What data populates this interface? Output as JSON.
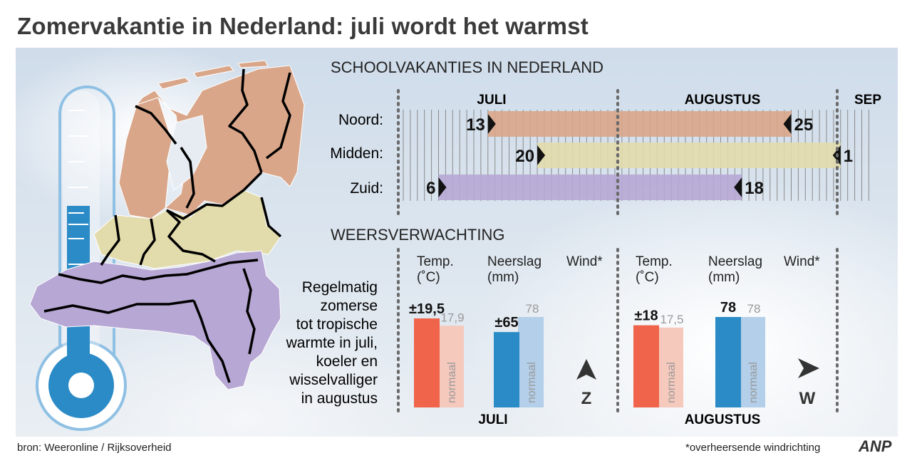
{
  "title": "Zomervakantie in Nederland: juli wordt het warmst",
  "footer": {
    "source": "bron:  Weeronline / Rijksoverheid",
    "note": "*overheersende windrichting",
    "logo": "ANP"
  },
  "schedule": {
    "heading": "SCHOOLVAKANTIES IN NEDERLAND",
    "months": [
      "JULI",
      "AUGUSTUS",
      "SEP"
    ],
    "regions": [
      {
        "label": "Noord:",
        "start": "13",
        "end": "25",
        "start_month": "juli",
        "end_month": "augustus",
        "color": "#d9a68a"
      },
      {
        "label": "Midden:",
        "start": "20",
        "end": "1",
        "start_month": "juli",
        "end_month": "september",
        "color": "#e2dbab"
      },
      {
        "label": "Zuid:",
        "start": "6",
        "end": "18",
        "start_month": "juli",
        "end_month": "augustus",
        "color": "#b7a7d4"
      }
    ]
  },
  "forecast": {
    "heading": "WEERSVERWACHTING",
    "description": [
      "Regelmatig",
      "zomerse",
      "tot tropische",
      "warmte in juli,",
      "koeler en",
      "wisselvalliger",
      "in augustus"
    ],
    "col_temp": [
      "Temp.",
      "(˚C)"
    ],
    "col_rain": [
      "Neerslag",
      "(mm)"
    ],
    "col_wind": "Wind*",
    "normal_label": "normaal",
    "months": [
      "JULI",
      "AUGUSTUS"
    ]
  },
  "chart_data": {
    "type": "bar",
    "categories": [
      "JULI",
      "AUGUSTUS"
    ],
    "series": [
      {
        "name": "Temp. (˚C)",
        "values": [
          19.5,
          18
        ],
        "labels": [
          "±19,5",
          "±18"
        ],
        "normal": [
          17.9,
          17.5
        ],
        "normal_labels": [
          "17,9",
          "17,5"
        ],
        "color": "#ef644a",
        "normal_color": "#f6c9bd"
      },
      {
        "name": "Neerslag (mm)",
        "values": [
          65,
          78
        ],
        "labels": [
          "±65",
          "78"
        ],
        "normal": [
          78,
          78
        ],
        "normal_labels": [
          "78",
          "78"
        ],
        "color": "#2b8bc7",
        "normal_color": "#b3cfe9"
      }
    ],
    "wind": [
      "Z",
      "W"
    ],
    "ylim": [
      0,
      80
    ]
  },
  "colors": {
    "noord": "#d9a68a",
    "midden": "#e2dbab",
    "zuid": "#b7a7d4",
    "thermometer": "#2b8bc7"
  }
}
